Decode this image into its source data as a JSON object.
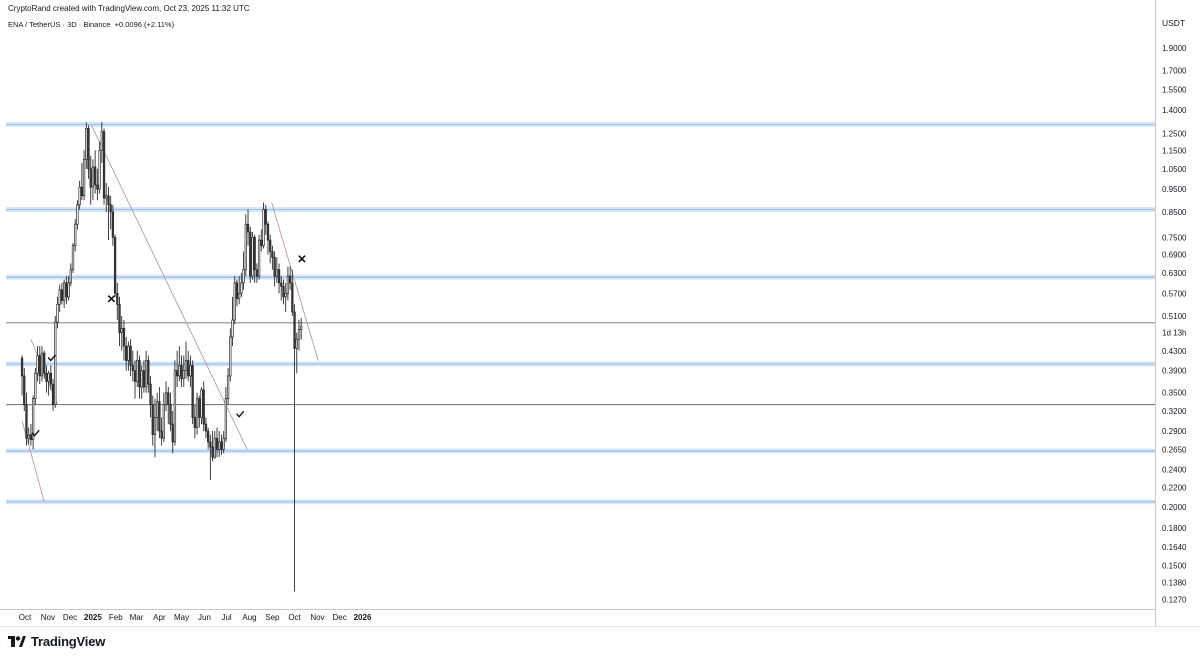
{
  "header": {
    "credit": "CryptoRand created with TradingView.com, Oct 23, 2025 11:32 UTC"
  },
  "symbol": {
    "pair": "ENA / TetherUS",
    "interval": "3D",
    "exchange": "Binance",
    "change": "+0.0096 (+2.11%)"
  },
  "brand": {
    "name": "TradingView"
  },
  "colors": {
    "up_candle_body": "#ffffff",
    "down_candle_body": "#3a3a3a",
    "candle_outline": "#2b2b2b",
    "support_line": "#9ec2ea",
    "level_line": "#555555",
    "trendline": "#b49ab0",
    "axis_border": "#c8c8c8"
  },
  "chart_data": {
    "type": "candlestick",
    "quote_currency": "USDT",
    "scale": "log",
    "y_range": [
      0.1235,
      2.0
    ],
    "price_ticks": [
      "1.9000",
      "1.7000",
      "1.5500",
      "1.4000",
      "1.2500",
      "1.1500",
      "1.0500",
      "0.9500",
      "0.8500",
      "0.7500",
      "0.6900",
      "0.6300",
      "0.5700",
      "0.5100",
      "0.4300",
      "0.3900",
      "0.3500",
      "0.3200",
      "0.2900",
      "0.2650",
      "0.2400",
      "0.2200",
      "0.2000",
      "0.1800",
      "0.1640",
      "0.1500",
      "0.1380",
      "0.1270"
    ],
    "countdown_label": "1d 13h",
    "countdown_price": 0.47,
    "time_labels": [
      "Oct",
      "Nov",
      "Dec",
      "2025",
      "Feb",
      "Mar",
      "Apr",
      "May",
      "Jun",
      "Jul",
      "Aug",
      "Sep",
      "Oct",
      "Nov",
      "Dec",
      "2026"
    ],
    "bold_time_labels": [
      "2025",
      "2026"
    ],
    "period_days": 3,
    "start_date": "2024-09-27",
    "candles": [
      [
        0.415,
        0.38,
        0.42,
        0.345
      ],
      [
        0.38,
        0.33,
        0.395,
        0.32
      ],
      [
        0.33,
        0.28,
        0.35,
        0.27
      ],
      [
        0.28,
        0.284,
        0.295,
        0.272
      ],
      [
        0.285,
        0.278,
        0.3,
        0.27
      ],
      [
        0.278,
        0.34,
        0.345,
        0.265
      ],
      [
        0.34,
        0.385,
        0.395,
        0.33
      ],
      [
        0.385,
        0.42,
        0.44,
        0.37
      ],
      [
        0.42,
        0.38,
        0.44,
        0.365
      ],
      [
        0.38,
        0.425,
        0.44,
        0.37
      ],
      [
        0.425,
        0.385,
        0.43,
        0.375
      ],
      [
        0.385,
        0.37,
        0.4,
        0.35
      ],
      [
        0.37,
        0.385,
        0.39,
        0.345
      ],
      [
        0.385,
        0.365,
        0.4,
        0.355
      ],
      [
        0.365,
        0.33,
        0.375,
        0.32
      ],
      [
        0.33,
        0.495,
        0.51,
        0.325
      ],
      [
        0.495,
        0.54,
        0.56,
        0.48
      ],
      [
        0.54,
        0.58,
        0.595,
        0.52
      ],
      [
        0.58,
        0.55,
        0.6,
        0.54
      ],
      [
        0.55,
        0.6,
        0.61,
        0.53
      ],
      [
        0.6,
        0.56,
        0.62,
        0.54
      ],
      [
        0.56,
        0.6,
        0.62,
        0.55
      ],
      [
        0.6,
        0.64,
        0.66,
        0.59
      ],
      [
        0.64,
        0.72,
        0.73,
        0.63
      ],
      [
        0.72,
        0.8,
        0.82,
        0.7
      ],
      [
        0.8,
        0.88,
        0.9,
        0.78
      ],
      [
        0.88,
        0.96,
        0.99,
        0.86
      ],
      [
        0.96,
        0.92,
        1.08,
        0.9
      ],
      [
        0.92,
        1.1,
        1.15,
        0.9
      ],
      [
        1.1,
        1.28,
        1.32,
        1.05
      ],
      [
        1.28,
        1.05,
        1.3,
        1.0
      ],
      [
        1.05,
        0.96,
        1.12,
        0.88
      ],
      [
        0.96,
        1.06,
        1.1,
        0.9
      ],
      [
        1.06,
        0.97,
        1.15,
        0.93
      ],
      [
        0.97,
        0.95,
        1.05,
        0.9
      ],
      [
        0.95,
        1.15,
        1.2,
        0.93
      ],
      [
        1.15,
        1.26,
        1.32,
        1.08
      ],
      [
        1.26,
        0.91,
        1.28,
        0.88
      ],
      [
        0.91,
        0.92,
        0.98,
        0.85
      ],
      [
        0.92,
        0.88,
        0.96,
        0.74
      ],
      [
        0.88,
        0.85,
        0.92,
        0.78
      ],
      [
        0.85,
        0.75,
        0.88,
        0.72
      ],
      [
        0.75,
        0.57,
        0.76,
        0.56
      ],
      [
        0.57,
        0.54,
        0.6,
        0.5
      ],
      [
        0.54,
        0.47,
        0.56,
        0.44
      ],
      [
        0.47,
        0.48,
        0.51,
        0.43
      ],
      [
        0.48,
        0.44,
        0.5,
        0.41
      ],
      [
        0.44,
        0.41,
        0.46,
        0.39
      ],
      [
        0.41,
        0.44,
        0.45,
        0.39
      ],
      [
        0.44,
        0.4,
        0.455,
        0.38
      ],
      [
        0.4,
        0.39,
        0.43,
        0.37
      ],
      [
        0.39,
        0.37,
        0.41,
        0.34
      ],
      [
        0.37,
        0.41,
        0.43,
        0.36
      ],
      [
        0.41,
        0.36,
        0.42,
        0.34
      ],
      [
        0.36,
        0.39,
        0.4,
        0.34
      ],
      [
        0.39,
        0.36,
        0.41,
        0.35
      ],
      [
        0.36,
        0.41,
        0.43,
        0.35
      ],
      [
        0.41,
        0.365,
        0.42,
        0.35
      ],
      [
        0.365,
        0.33,
        0.38,
        0.31
      ],
      [
        0.33,
        0.285,
        0.345,
        0.27
      ],
      [
        0.285,
        0.31,
        0.34,
        0.255
      ],
      [
        0.31,
        0.335,
        0.35,
        0.29
      ],
      [
        0.335,
        0.29,
        0.36,
        0.28
      ],
      [
        0.29,
        0.28,
        0.31,
        0.27
      ],
      [
        0.28,
        0.33,
        0.35,
        0.275
      ],
      [
        0.33,
        0.35,
        0.37,
        0.32
      ],
      [
        0.35,
        0.33,
        0.36,
        0.3
      ],
      [
        0.33,
        0.3,
        0.35,
        0.29
      ],
      [
        0.3,
        0.275,
        0.32,
        0.26
      ],
      [
        0.275,
        0.39,
        0.41,
        0.27
      ],
      [
        0.39,
        0.38,
        0.43,
        0.36
      ],
      [
        0.38,
        0.4,
        0.44,
        0.37
      ],
      [
        0.4,
        0.375,
        0.42,
        0.36
      ],
      [
        0.375,
        0.39,
        0.42,
        0.36
      ],
      [
        0.39,
        0.41,
        0.45,
        0.375
      ],
      [
        0.41,
        0.38,
        0.43,
        0.37
      ],
      [
        0.38,
        0.4,
        0.42,
        0.36
      ],
      [
        0.4,
        0.31,
        0.41,
        0.3
      ],
      [
        0.31,
        0.295,
        0.33,
        0.28
      ],
      [
        0.295,
        0.34,
        0.35,
        0.285
      ],
      [
        0.34,
        0.31,
        0.345,
        0.295
      ],
      [
        0.31,
        0.355,
        0.36,
        0.3
      ],
      [
        0.355,
        0.3,
        0.37,
        0.29
      ],
      [
        0.3,
        0.29,
        0.31,
        0.28
      ],
      [
        0.29,
        0.275,
        0.295,
        0.265
      ],
      [
        0.275,
        0.268,
        0.285,
        0.228
      ],
      [
        0.268,
        0.255,
        0.29,
        0.25
      ],
      [
        0.255,
        0.28,
        0.29,
        0.253
      ],
      [
        0.28,
        0.265,
        0.295,
        0.255
      ],
      [
        0.265,
        0.275,
        0.29,
        0.255
      ],
      [
        0.275,
        0.265,
        0.285,
        0.258
      ],
      [
        0.265,
        0.28,
        0.29,
        0.26
      ],
      [
        0.28,
        0.34,
        0.36,
        0.275
      ],
      [
        0.34,
        0.38,
        0.395,
        0.33
      ],
      [
        0.38,
        0.46,
        0.48,
        0.37
      ],
      [
        0.46,
        0.5,
        0.56,
        0.44
      ],
      [
        0.5,
        0.6,
        0.62,
        0.49
      ],
      [
        0.6,
        0.555,
        0.61,
        0.535
      ],
      [
        0.555,
        0.57,
        0.62,
        0.54
      ],
      [
        0.57,
        0.6,
        0.63,
        0.56
      ],
      [
        0.6,
        0.64,
        0.7,
        0.58
      ],
      [
        0.64,
        0.8,
        0.84,
        0.62
      ],
      [
        0.8,
        0.77,
        0.86,
        0.72
      ],
      [
        0.77,
        0.62,
        0.79,
        0.6
      ],
      [
        0.62,
        0.75,
        0.77,
        0.61
      ],
      [
        0.75,
        0.64,
        0.76,
        0.6
      ],
      [
        0.64,
        0.62,
        0.66,
        0.6
      ],
      [
        0.62,
        0.74,
        0.76,
        0.61
      ],
      [
        0.74,
        0.72,
        0.78,
        0.7
      ],
      [
        0.72,
        0.86,
        0.89,
        0.71
      ],
      [
        0.86,
        0.8,
        0.88,
        0.76
      ],
      [
        0.8,
        0.74,
        0.81,
        0.69
      ],
      [
        0.74,
        0.7,
        0.76,
        0.66
      ],
      [
        0.7,
        0.68,
        0.72,
        0.64
      ],
      [
        0.68,
        0.62,
        0.7,
        0.59
      ],
      [
        0.62,
        0.64,
        0.68,
        0.6
      ],
      [
        0.64,
        0.6,
        0.66,
        0.57
      ],
      [
        0.6,
        0.59,
        0.62,
        0.55
      ],
      [
        0.59,
        0.56,
        0.61,
        0.54
      ],
      [
        0.56,
        0.57,
        0.6,
        0.52
      ],
      [
        0.57,
        0.62,
        0.65,
        0.55
      ],
      [
        0.62,
        0.6,
        0.65,
        0.58
      ],
      [
        0.6,
        0.52,
        0.64,
        0.51
      ],
      [
        0.52,
        0.435,
        0.54,
        0.132
      ],
      [
        0.435,
        0.455,
        0.47,
        0.385
      ],
      [
        0.455,
        0.477,
        0.5,
        0.43
      ],
      [
        0.477,
        0.485,
        0.505,
        0.455
      ]
    ],
    "horizontal_levels": [
      {
        "price": 1.305,
        "style": "support"
      },
      {
        "price": 0.86,
        "style": "support"
      },
      {
        "price": 0.617,
        "style": "support"
      },
      {
        "price": 0.493,
        "style": "level"
      },
      {
        "price": 0.403,
        "style": "support"
      },
      {
        "price": 0.33,
        "style": "level"
      },
      {
        "price": 0.263,
        "style": "support"
      },
      {
        "price": 0.205,
        "style": "support"
      }
    ],
    "trendlines": [
      {
        "from": [
          "2024-09-27",
          0.305
        ],
        "to": [
          "2024-10-27",
          0.205
        ]
      },
      {
        "from": [
          "2024-10-09",
          0.455
        ],
        "to": [
          "2024-11-14",
          0.33
        ]
      },
      {
        "from": [
          "2024-12-30",
          1.3
        ],
        "to": [
          "2025-07-29",
          0.265
        ]
      },
      {
        "from": [
          "2025-08-31",
          0.89
        ],
        "to": [
          "2025-11-02",
          0.41
        ]
      }
    ],
    "markers": [
      {
        "type": "check",
        "date": "2024-10-15",
        "price": 0.287
      },
      {
        "type": "check",
        "date": "2024-11-06",
        "price": 0.415
      },
      {
        "type": "cross",
        "date": "2025-01-26",
        "price": 0.555
      },
      {
        "type": "check",
        "date": "2025-07-19",
        "price": 0.315
      },
      {
        "type": "cross",
        "date": "2025-10-11",
        "price": 0.675
      }
    ]
  }
}
